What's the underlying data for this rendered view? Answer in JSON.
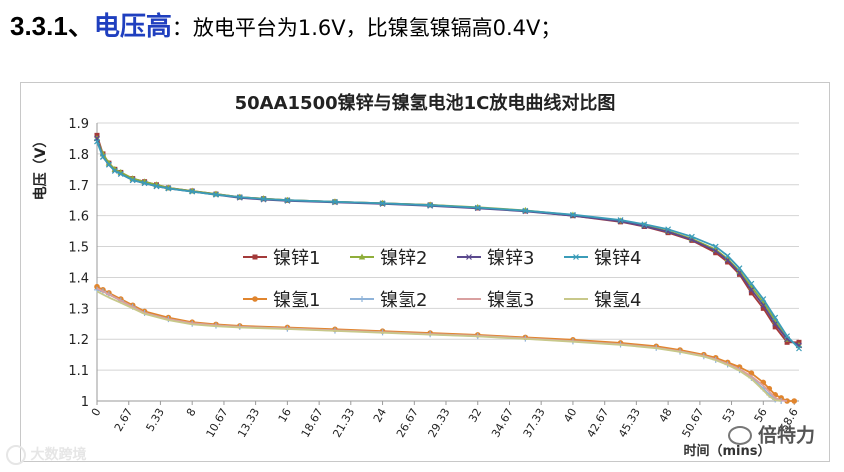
{
  "heading": {
    "number": "3.3.1、",
    "keyword": "电压高",
    "rest": "：放电平台为1.6V，比镍氢镍镉高0.4V；"
  },
  "watermarks": {
    "left": "大数跨境",
    "right": "倍特力"
  },
  "colors": {
    "heading_keyword": "#1f3fbf",
    "grid": "#d4d4d4"
  },
  "chart_data": {
    "type": "line",
    "title": "50AA1500镍锌与镍氢电池1C放电曲线对比图",
    "xlabel": "时间（mins）",
    "ylabel": "电压（V）",
    "xlim": [
      0,
      59
    ],
    "ylim": [
      1,
      1.9
    ],
    "yticks": [
      "1",
      "1.1",
      "1.2",
      "1.3",
      "1.4",
      "1.5",
      "1.6",
      "1.7",
      "1.8",
      "1.9"
    ],
    "xtick_values": [
      0,
      2.67,
      5.33,
      8,
      10.67,
      13.33,
      16,
      18.67,
      21.33,
      24,
      26.67,
      29.33,
      32,
      34.67,
      37.33,
      40,
      42.67,
      45.33,
      48,
      50.67,
      53.33,
      56,
      58.6
    ],
    "xtick_labels": [
      "0",
      "2.67",
      "5.33",
      "8",
      "10.67",
      "13.33",
      "16",
      "18.67",
      "21.33",
      "24",
      "26.67",
      "29.33",
      "32",
      "34.67",
      "37.33",
      "40",
      "42.67",
      "45.33",
      "48",
      "50.67",
      "53",
      "56",
      "58.6"
    ],
    "grid": true,
    "legend_position": "center",
    "series": [
      {
        "name": "镍锌1",
        "color": "#a33a3a",
        "marker": "square",
        "x": [
          0,
          0.5,
          1,
          1.5,
          2,
          3,
          4,
          5,
          6,
          8,
          10,
          12,
          14,
          16,
          20,
          24,
          28,
          32,
          36,
          40,
          44,
          46,
          48,
          50,
          52,
          53,
          54,
          55,
          56,
          57,
          58,
          59
        ],
        "y": [
          1.86,
          1.8,
          1.77,
          1.75,
          1.74,
          1.72,
          1.71,
          1.7,
          1.69,
          1.68,
          1.67,
          1.66,
          1.655,
          1.65,
          1.645,
          1.64,
          1.635,
          1.625,
          1.615,
          1.6,
          1.58,
          1.565,
          1.545,
          1.52,
          1.48,
          1.45,
          1.41,
          1.35,
          1.3,
          1.24,
          1.19,
          1.19
        ]
      },
      {
        "name": "镍锌2",
        "color": "#8fae3a",
        "marker": "triangle",
        "x": [
          0,
          0.5,
          1,
          1.5,
          2,
          3,
          4,
          5,
          6,
          8,
          10,
          12,
          14,
          16,
          20,
          24,
          28,
          32,
          36,
          40,
          44,
          46,
          48,
          50,
          52,
          53,
          54,
          55,
          56,
          57,
          58,
          59
        ],
        "y": [
          1.85,
          1.8,
          1.77,
          1.75,
          1.74,
          1.72,
          1.71,
          1.7,
          1.69,
          1.68,
          1.67,
          1.66,
          1.655,
          1.65,
          1.645,
          1.64,
          1.635,
          1.627,
          1.617,
          1.602,
          1.583,
          1.568,
          1.55,
          1.525,
          1.49,
          1.46,
          1.42,
          1.37,
          1.32,
          1.26,
          1.2,
          1.18
        ]
      },
      {
        "name": "镍锌3",
        "color": "#5b4a8e",
        "marker": "x",
        "x": [
          0,
          0.5,
          1,
          1.5,
          2,
          3,
          4,
          5,
          6,
          8,
          10,
          12,
          14,
          16,
          20,
          24,
          28,
          32,
          36,
          40,
          44,
          46,
          48,
          50,
          52,
          53,
          54,
          55,
          56,
          57,
          58,
          59
        ],
        "y": [
          1.85,
          1.79,
          1.765,
          1.745,
          1.735,
          1.715,
          1.705,
          1.695,
          1.688,
          1.678,
          1.668,
          1.658,
          1.652,
          1.648,
          1.643,
          1.638,
          1.632,
          1.624,
          1.614,
          1.6,
          1.582,
          1.566,
          1.548,
          1.522,
          1.486,
          1.456,
          1.415,
          1.36,
          1.31,
          1.25,
          1.2,
          1.18
        ]
      },
      {
        "name": "镍锌4",
        "color": "#3b9cb8",
        "marker": "x",
        "x": [
          0,
          0.5,
          1,
          1.5,
          2,
          3,
          4,
          5,
          6,
          8,
          10,
          12,
          14,
          16,
          20,
          24,
          28,
          32,
          36,
          40,
          44,
          46,
          48,
          50,
          52,
          53,
          54,
          55,
          56,
          57,
          58,
          59
        ],
        "y": [
          1.84,
          1.79,
          1.765,
          1.745,
          1.735,
          1.715,
          1.705,
          1.695,
          1.688,
          1.678,
          1.668,
          1.66,
          1.654,
          1.65,
          1.645,
          1.64,
          1.634,
          1.626,
          1.616,
          1.603,
          1.586,
          1.572,
          1.556,
          1.532,
          1.5,
          1.47,
          1.43,
          1.38,
          1.33,
          1.27,
          1.21,
          1.17
        ]
      },
      {
        "name": "镍氢1",
        "color": "#e0852e",
        "marker": "circle",
        "x": [
          0,
          0.5,
          1,
          2,
          3,
          4,
          6,
          8,
          10,
          12,
          16,
          20,
          24,
          28,
          32,
          36,
          40,
          44,
          47,
          49,
          51,
          52,
          53,
          54,
          55,
          56,
          56.5,
          57,
          57.5,
          58,
          58.6
        ],
        "y": [
          1.37,
          1.36,
          1.35,
          1.33,
          1.31,
          1.29,
          1.27,
          1.255,
          1.248,
          1.243,
          1.238,
          1.232,
          1.226,
          1.22,
          1.214,
          1.206,
          1.198,
          1.188,
          1.177,
          1.165,
          1.15,
          1.14,
          1.125,
          1.11,
          1.09,
          1.06,
          1.04,
          1.02,
          1.01,
          1.0,
          1.0
        ]
      },
      {
        "name": "镍氢2",
        "color": "#8fb3d9",
        "marker": "plus",
        "x": [
          0,
          0.5,
          1,
          2,
          3,
          4,
          6,
          8,
          10,
          12,
          16,
          20,
          24,
          28,
          32,
          36,
          40,
          44,
          47,
          49,
          51,
          52,
          53,
          54,
          55,
          56,
          56.5,
          57,
          57.5
        ],
        "y": [
          1.36,
          1.355,
          1.345,
          1.325,
          1.305,
          1.285,
          1.265,
          1.25,
          1.244,
          1.24,
          1.234,
          1.228,
          1.222,
          1.216,
          1.21,
          1.202,
          1.193,
          1.183,
          1.172,
          1.16,
          1.145,
          1.133,
          1.118,
          1.1,
          1.075,
          1.04,
          1.02,
          1.005,
          1.0
        ]
      },
      {
        "name": "镍氢3",
        "color": "#d9a0a0",
        "marker": "none",
        "x": [
          0,
          0.5,
          1,
          2,
          3,
          4,
          6,
          8,
          10,
          12,
          16,
          20,
          24,
          28,
          32,
          36,
          40,
          44,
          47,
          49,
          51,
          52,
          53,
          54,
          55,
          56,
          56.5,
          57,
          57.5,
          58
        ],
        "y": [
          1.365,
          1.355,
          1.345,
          1.325,
          1.305,
          1.285,
          1.265,
          1.252,
          1.245,
          1.24,
          1.235,
          1.229,
          1.223,
          1.217,
          1.211,
          1.203,
          1.194,
          1.184,
          1.173,
          1.161,
          1.146,
          1.135,
          1.12,
          1.103,
          1.08,
          1.05,
          1.03,
          1.01,
          1.002,
          1.0
        ]
      },
      {
        "name": "镍氢4",
        "color": "#c8c88a",
        "marker": "none",
        "x": [
          0,
          0.5,
          1,
          2,
          3,
          4,
          6,
          8,
          10,
          12,
          16,
          20,
          24,
          28,
          32,
          36,
          40,
          44,
          47,
          49,
          51,
          52,
          53,
          54,
          55,
          56,
          56.5,
          57,
          57.5
        ],
        "y": [
          1.355,
          1.345,
          1.335,
          1.318,
          1.3,
          1.282,
          1.262,
          1.248,
          1.242,
          1.238,
          1.233,
          1.227,
          1.221,
          1.215,
          1.209,
          1.201,
          1.192,
          1.182,
          1.171,
          1.159,
          1.144,
          1.132,
          1.117,
          1.098,
          1.072,
          1.035,
          1.015,
          1.003,
          1.0
        ]
      }
    ]
  }
}
